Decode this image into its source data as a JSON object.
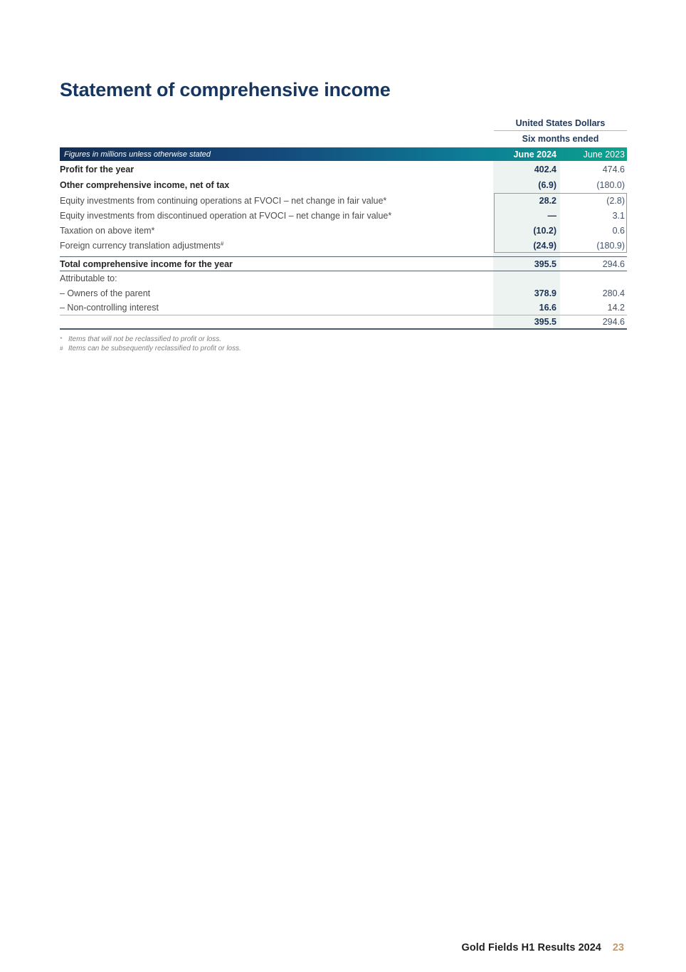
{
  "title": "Statement of comprehensive income",
  "table": {
    "currency_header": "United States Dollars",
    "period_header": "Six months ended",
    "figures_note": "Figures in millions unless otherwise stated",
    "columns": [
      "June 2024",
      "June 2023"
    ],
    "rows": [
      {
        "label": "Profit for the year",
        "jun2024": "402.4",
        "jun2023": "474.6"
      },
      {
        "label": "Other comprehensive income, net of tax",
        "jun2024": "(6.9)",
        "jun2023": "(180.0)"
      },
      {
        "label": "Equity investments from continuing operations at FVOCI – net change in fair value*",
        "jun2024": "28.2",
        "jun2023": "(2.8)"
      },
      {
        "label": "Equity investments from discontinued operation at FVOCI – net change in fair value*",
        "jun2024": "—",
        "jun2023": "3.1"
      },
      {
        "label": "Taxation on above item*",
        "jun2024": "(10.2)",
        "jun2023": "0.6"
      },
      {
        "label": "Foreign currency translation adjustments",
        "label_sup": "#",
        "jun2024": "(24.9)",
        "jun2023": "(180.9)"
      },
      {
        "label": "Total comprehensive income for the year",
        "jun2024": "395.5",
        "jun2023": "294.6"
      },
      {
        "label": "Attributable to:",
        "jun2024": "",
        "jun2023": ""
      },
      {
        "label": "– Owners of the parent",
        "jun2024": "378.9",
        "jun2023": "280.4"
      },
      {
        "label": "– Non-controlling interest",
        "jun2024": "16.6",
        "jun2023": "14.2"
      },
      {
        "label": "",
        "jun2024": "395.5",
        "jun2023": "294.6"
      }
    ]
  },
  "footnotes": [
    {
      "marker": "*",
      "text": "Items that will not be reclassified to profit or loss."
    },
    {
      "marker": "#",
      "text": "Items can be subsequently reclassified to profit or loss."
    }
  ],
  "footer": {
    "brand": "Gold Fields H1 Results",
    "year": "2024",
    "page": "23"
  },
  "colors": {
    "navy": "#16365f",
    "teal": "#0aa48c",
    "column_shade": "#edf3f0",
    "page_number_gold": "#c2996c"
  }
}
